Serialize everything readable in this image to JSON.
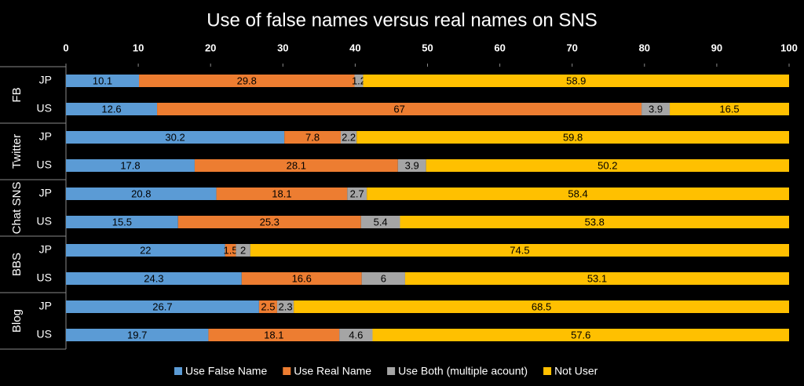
{
  "chart_data": {
    "type": "stacked-bar-horizontal",
    "title": "Use of false names versus real names on SNS",
    "groups": [
      "FB",
      "Twitter",
      "Chat SNS",
      "BBS",
      "Blog"
    ],
    "categories": [
      "JP",
      "US",
      "JP",
      "US",
      "JP",
      "US",
      "JP",
      "US",
      "JP",
      "US"
    ],
    "series": [
      {
        "name": "Use False Name",
        "color": "#5b9bd5",
        "values": [
          10.1,
          12.6,
          30.2,
          17.8,
          20.8,
          15.5,
          22,
          24.3,
          26.7,
          19.7
        ]
      },
      {
        "name": "Use Real Name",
        "color": "#ed7d31",
        "values": [
          29.8,
          67,
          7.8,
          28.1,
          18.1,
          25.3,
          1.5,
          16.6,
          2.5,
          18.1
        ]
      },
      {
        "name": "Use Both (multiple acount)",
        "color": "#a5a5a5",
        "values": [
          1.2,
          3.9,
          2.2,
          3.9,
          2.7,
          5.4,
          2,
          6,
          2.3,
          4.6
        ]
      },
      {
        "name": "Not User",
        "color": "#ffc000",
        "values": [
          58.9,
          16.5,
          59.8,
          50.2,
          58.4,
          53.8,
          74.5,
          53.1,
          68.5,
          57.6
        ]
      }
    ],
    "xlim": [
      0,
      100
    ],
    "xticks": [
      0,
      10,
      20,
      30,
      40,
      50,
      60,
      70,
      80,
      90,
      100
    ]
  }
}
